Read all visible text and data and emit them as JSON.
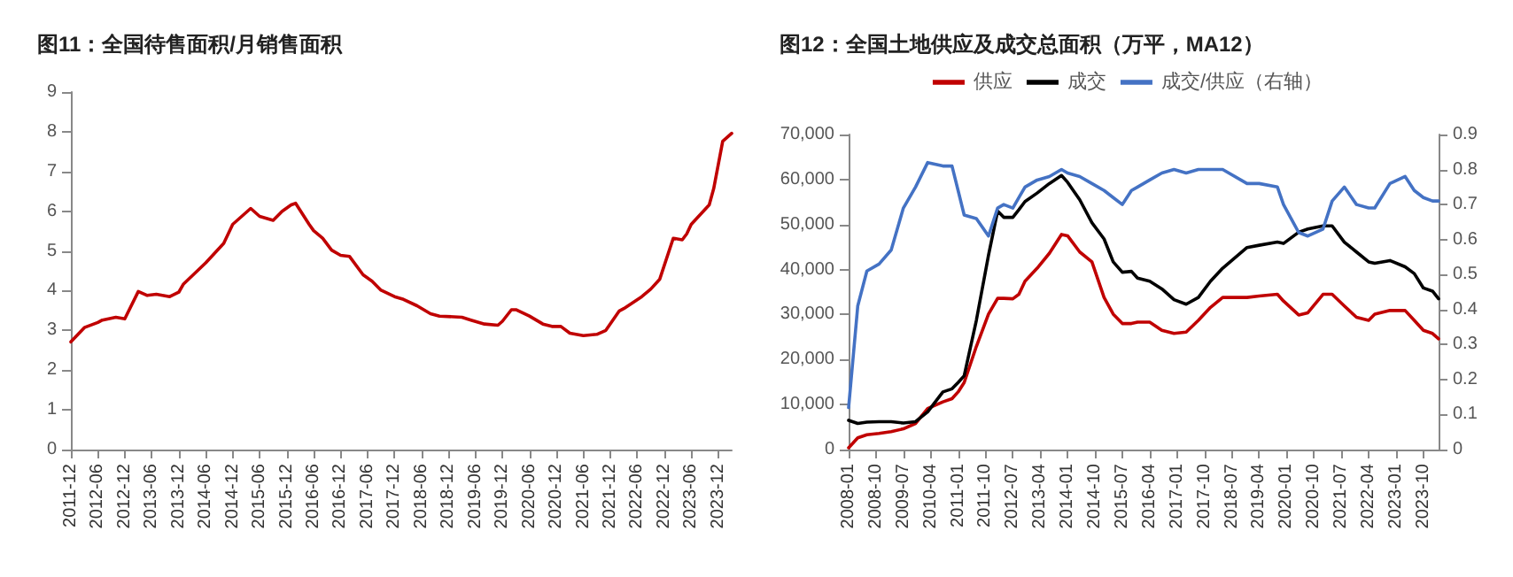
{
  "chart_data": [
    {
      "type": "line",
      "title": "图11：全国待售面积/月销售面积",
      "marker": "none",
      "x": [
        "2011-12",
        "2012-03",
        "2012-06",
        "2012-07",
        "2012-10",
        "2012-12",
        "2013-03",
        "2013-05",
        "2013-07",
        "2013-10",
        "2013-12",
        "2014-01",
        "2014-06",
        "2014-10",
        "2014-12",
        "2015-04",
        "2015-06",
        "2015-09",
        "2015-11",
        "2016-01",
        "2016-02",
        "2016-05",
        "2016-06",
        "2016-08",
        "2016-10",
        "2016-12",
        "2017-02",
        "2017-05",
        "2017-07",
        "2017-09",
        "2017-12",
        "2018-02",
        "2018-05",
        "2018-08",
        "2018-10",
        "2019-03",
        "2019-05",
        "2019-08",
        "2019-11",
        "2019-12",
        "2020-02",
        "2020-03",
        "2020-06",
        "2020-09",
        "2020-11",
        "2021-01",
        "2021-03",
        "2021-06",
        "2021-09",
        "2021-11",
        "2022-02",
        "2022-03",
        "2022-07",
        "2022-09",
        "2022-11",
        "2023-02",
        "2023-04",
        "2023-05",
        "2023-06",
        "2023-10",
        "2023-11",
        "2024-01",
        "2024-03"
      ],
      "series": [
        {
          "color": "#c00000",
          "values": [
            2.71,
            3.07,
            3.2,
            3.26,
            3.33,
            3.29,
            3.98,
            3.88,
            3.91,
            3.85,
            3.96,
            4.16,
            4.7,
            5.19,
            5.67,
            6.07,
            5.87,
            5.77,
            6.0,
            6.16,
            6.2,
            5.67,
            5.51,
            5.32,
            5.02,
            4.89,
            4.86,
            4.4,
            4.24,
            4.01,
            3.85,
            3.78,
            3.62,
            3.42,
            3.36,
            3.33,
            3.26,
            3.16,
            3.13,
            3.23,
            3.52,
            3.52,
            3.36,
            3.16,
            3.1,
            3.1,
            2.93,
            2.87,
            2.9,
            3.0,
            3.49,
            3.55,
            3.85,
            4.04,
            4.29,
            5.32,
            5.28,
            5.43,
            5.67,
            6.16,
            6.57,
            7.76,
            7.96
          ]
        }
      ],
      "xlim": [
        "2011-12",
        "2024-03"
      ],
      "xticks": [
        "2011-12",
        "2012-06",
        "2012-12",
        "2013-06",
        "2013-12",
        "2014-06",
        "2014-12",
        "2015-06",
        "2015-12",
        "2016-06",
        "2016-12",
        "2017-06",
        "2017-12",
        "2018-06",
        "2018-12",
        "2019-06",
        "2019-12",
        "2020-06",
        "2020-12",
        "2021-06",
        "2021-12",
        "2022-06",
        "2022-12",
        "2023-06",
        "2023-12"
      ],
      "ylim": [
        0,
        9
      ],
      "yticks": [
        0,
        1,
        2,
        3,
        4,
        5,
        6,
        7,
        8,
        9
      ]
    },
    {
      "type": "line",
      "title": "图12：全国土地供应及成交总面积（万平，MA12）",
      "marker": "none",
      "legend": "top",
      "x": [
        "2008-01",
        "2008-04",
        "2008-07",
        "2008-11",
        "2009-03",
        "2009-07",
        "2009-11",
        "2010-03",
        "2010-08",
        "2010-11",
        "2011-01",
        "2011-03",
        "2011-07",
        "2011-11",
        "2012-02",
        "2012-04",
        "2012-07",
        "2012-09",
        "2012-11",
        "2013-03",
        "2013-07",
        "2013-11",
        "2014-01",
        "2014-05",
        "2014-09",
        "2015-01",
        "2015-04",
        "2015-07",
        "2015-10",
        "2015-12",
        "2016-04",
        "2016-08",
        "2016-12",
        "2017-04",
        "2017-08",
        "2017-12",
        "2018-04",
        "2018-12",
        "2019-04",
        "2019-10",
        "2019-12",
        "2020-05",
        "2020-08",
        "2021-01",
        "2021-04",
        "2021-08",
        "2021-12",
        "2022-04",
        "2022-06",
        "2022-11",
        "2023-04",
        "2023-07",
        "2023-10",
        "2024-01",
        "2024-03"
      ],
      "series": [
        {
          "name": "供应",
          "color": "#c00000",
          "values": [
            400,
            2600,
            3300,
            3600,
            4000,
            4600,
            5800,
            9100,
            10600,
            11300,
            12800,
            14900,
            22900,
            30100,
            33600,
            33600,
            33500,
            34500,
            37400,
            40300,
            43600,
            47800,
            47500,
            43900,
            41700,
            33800,
            30100,
            28000,
            28000,
            28300,
            28300,
            26500,
            25800,
            26100,
            28700,
            31600,
            33800,
            33800,
            34100,
            34500,
            33000,
            29900,
            30400,
            34500,
            34500,
            31900,
            29400,
            28700,
            30100,
            30900,
            30900,
            28700,
            26500,
            25800,
            24600
          ]
        },
        {
          "name": "成交",
          "color": "#000000",
          "values": [
            6500,
            5800,
            6100,
            6200,
            6200,
            5900,
            6200,
            8400,
            12800,
            13500,
            14900,
            16400,
            28700,
            43200,
            53000,
            51600,
            51600,
            53300,
            55100,
            57000,
            59100,
            60900,
            59400,
            55500,
            50400,
            46800,
            41700,
            39400,
            39600,
            38100,
            37400,
            35700,
            33300,
            32300,
            33800,
            37400,
            40300,
            44900,
            45400,
            46100,
            45800,
            48300,
            49000,
            49700,
            49700,
            46100,
            43900,
            41700,
            41400,
            42000,
            40600,
            39100,
            35900,
            35200,
            33500
          ]
        },
        {
          "name": "成交/供应（右轴）",
          "color": "#4472c4",
          "axis": "y2",
          "values": [
            0.12,
            0.41,
            0.51,
            0.53,
            0.57,
            0.69,
            0.75,
            0.82,
            0.81,
            0.81,
            0.74,
            0.67,
            0.66,
            0.61,
            0.69,
            0.7,
            0.69,
            0.72,
            0.75,
            0.77,
            0.78,
            0.8,
            0.79,
            0.78,
            0.76,
            0.74,
            0.72,
            0.7,
            0.74,
            0.75,
            0.77,
            0.79,
            0.8,
            0.79,
            0.8,
            0.8,
            0.8,
            0.76,
            0.76,
            0.75,
            0.7,
            0.62,
            0.61,
            0.63,
            0.71,
            0.75,
            0.7,
            0.69,
            0.69,
            0.76,
            0.78,
            0.74,
            0.72,
            0.71,
            0.71
          ]
        }
      ],
      "xlim": [
        "2008-01",
        "2024-03"
      ],
      "xticks": [
        "2008-01",
        "2008-10",
        "2009-07",
        "2010-04",
        "2011-01",
        "2011-10",
        "2012-07",
        "2013-04",
        "2014-01",
        "2014-10",
        "2015-07",
        "2016-04",
        "2017-01",
        "2017-10",
        "2018-07",
        "2019-04",
        "2020-01",
        "2020-10",
        "2021-07",
        "2022-04",
        "2023-01",
        "2023-10"
      ],
      "ylim": [
        0,
        70000
      ],
      "yticks": [
        0,
        {
          "value": 10000,
          "label": "10,000"
        },
        {
          "value": 20000,
          "label": "20,000"
        },
        {
          "value": 30000,
          "label": "30,000"
        },
        {
          "value": 40000,
          "label": "40,000"
        },
        {
          "value": 50000,
          "label": "50,000"
        },
        {
          "value": 60000,
          "label": "60,000"
        },
        {
          "value": 70000,
          "label": "70,000"
        }
      ],
      "y2lim": [
        0,
        0.9
      ],
      "y2ticks": [
        0,
        0.1,
        0.2,
        0.3,
        0.4,
        0.5,
        0.6,
        0.7,
        0.8,
        0.9
      ]
    }
  ]
}
